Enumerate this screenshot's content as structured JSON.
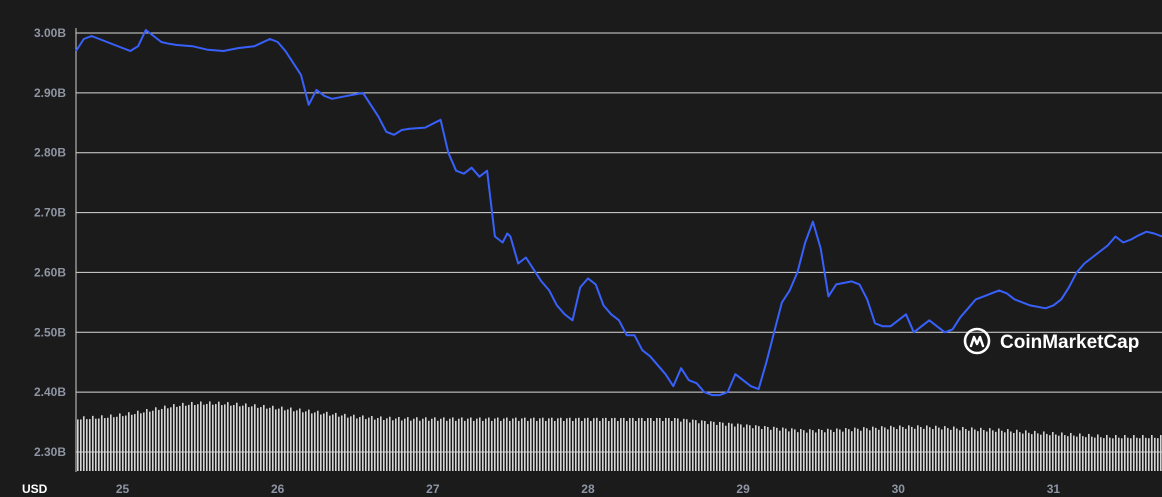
{
  "chart_data": {
    "type": "line",
    "currency": "USD",
    "ylim": [
      2280000000,
      3020000000
    ],
    "xlim": [
      24.7,
      31.7
    ],
    "y_ticks": [
      {
        "value": 2300000000,
        "label": "2.30B"
      },
      {
        "value": 2400000000,
        "label": "2.40B"
      },
      {
        "value": 2500000000,
        "label": "2.50B"
      },
      {
        "value": 2600000000,
        "label": "2.60B"
      },
      {
        "value": 2700000000,
        "label": "2.70B"
      },
      {
        "value": 2800000000,
        "label": "2.80B"
      },
      {
        "value": 2900000000,
        "label": "2.90B"
      },
      {
        "value": 3000000000,
        "label": "3.00B"
      }
    ],
    "x_ticks": [
      {
        "value": 25,
        "label": "25"
      },
      {
        "value": 26,
        "label": "26"
      },
      {
        "value": 27,
        "label": "27"
      },
      {
        "value": 28,
        "label": "28"
      },
      {
        "value": 29,
        "label": "29"
      },
      {
        "value": 30,
        "label": "30"
      },
      {
        "value": 31,
        "label": "31"
      }
    ],
    "grid": true,
    "series": [
      {
        "name": "",
        "color": "#3861fb",
        "x": [
          24.7,
          24.75,
          24.8,
          24.85,
          24.9,
          25.0,
          25.05,
          25.1,
          25.15,
          25.2,
          25.25,
          25.3,
          25.35,
          25.45,
          25.55,
          25.65,
          25.75,
          25.85,
          25.95,
          26.0,
          26.05,
          26.1,
          26.15,
          26.2,
          26.25,
          26.3,
          26.35,
          26.45,
          26.55,
          26.65,
          26.7,
          26.75,
          26.8,
          26.85,
          26.95,
          27.05,
          27.1,
          27.15,
          27.2,
          27.25,
          27.3,
          27.35,
          27.4,
          27.45,
          27.48,
          27.5,
          27.55,
          27.6,
          27.7,
          27.75,
          27.8,
          27.85,
          27.9,
          27.95,
          28.0,
          28.05,
          28.1,
          28.15,
          28.2,
          28.25,
          28.3,
          28.35,
          28.4,
          28.5,
          28.55,
          28.6,
          28.65,
          28.7,
          28.75,
          28.8,
          28.85,
          28.9,
          28.95,
          29.0,
          29.05,
          29.1,
          29.15,
          29.2,
          29.25,
          29.3,
          29.35,
          29.4,
          29.45,
          29.5,
          29.55,
          29.6,
          29.7,
          29.75,
          29.8,
          29.85,
          29.9,
          29.95,
          30.0,
          30.05,
          30.1,
          30.15,
          30.2,
          30.25,
          30.3,
          30.35,
          30.4,
          30.45,
          30.5,
          30.55,
          30.6,
          30.65,
          30.7,
          30.75,
          30.85,
          30.95,
          31.0,
          31.05,
          31.1,
          31.15,
          31.2,
          31.25,
          31.3,
          31.35,
          31.4,
          31.45,
          31.5,
          31.55,
          31.6,
          31.65,
          31.7
        ],
        "values": [
          2970000000,
          2990000000,
          2995000000,
          2990000000,
          2985000000,
          2975000000,
          2970000000,
          2978000000,
          3005000000,
          2995000000,
          2985000000,
          2982000000,
          2980000000,
          2978000000,
          2972000000,
          2970000000,
          2975000000,
          2978000000,
          2990000000,
          2985000000,
          2970000000,
          2950000000,
          2930000000,
          2880000000,
          2905000000,
          2895000000,
          2890000000,
          2895000000,
          2900000000,
          2860000000,
          2835000000,
          2830000000,
          2838000000,
          2840000000,
          2842000000,
          2855000000,
          2800000000,
          2770000000,
          2765000000,
          2775000000,
          2760000000,
          2770000000,
          2660000000,
          2650000000,
          2665000000,
          2660000000,
          2615000000,
          2625000000,
          2585000000,
          2570000000,
          2545000000,
          2530000000,
          2520000000,
          2575000000,
          2590000000,
          2580000000,
          2545000000,
          2530000000,
          2520000000,
          2495000000,
          2495000000,
          2470000000,
          2460000000,
          2430000000,
          2410000000,
          2440000000,
          2420000000,
          2415000000,
          2400000000,
          2395000000,
          2395000000,
          2400000000,
          2430000000,
          2420000000,
          2410000000,
          2405000000,
          2450000000,
          2500000000,
          2550000000,
          2570000000,
          2600000000,
          2650000000,
          2685000000,
          2640000000,
          2560000000,
          2580000000,
          2585000000,
          2580000000,
          2555000000,
          2515000000,
          2510000000,
          2510000000,
          2520000000,
          2530000000,
          2500000000,
          2510000000,
          2520000000,
          2510000000,
          2500000000,
          2505000000,
          2525000000,
          2540000000,
          2555000000,
          2560000000,
          2565000000,
          2570000000,
          2565000000,
          2555000000,
          2545000000,
          2540000000,
          2545000000,
          2555000000,
          2575000000,
          2600000000,
          2615000000,
          2625000000,
          2635000000,
          2645000000,
          2660000000,
          2650000000,
          2655000000,
          2662000000,
          2668000000,
          2665000000,
          2660000000
        ]
      }
    ]
  },
  "watermark": {
    "text": "CoinMarketCap",
    "icon": "coinmarketcap-logo-icon"
  }
}
